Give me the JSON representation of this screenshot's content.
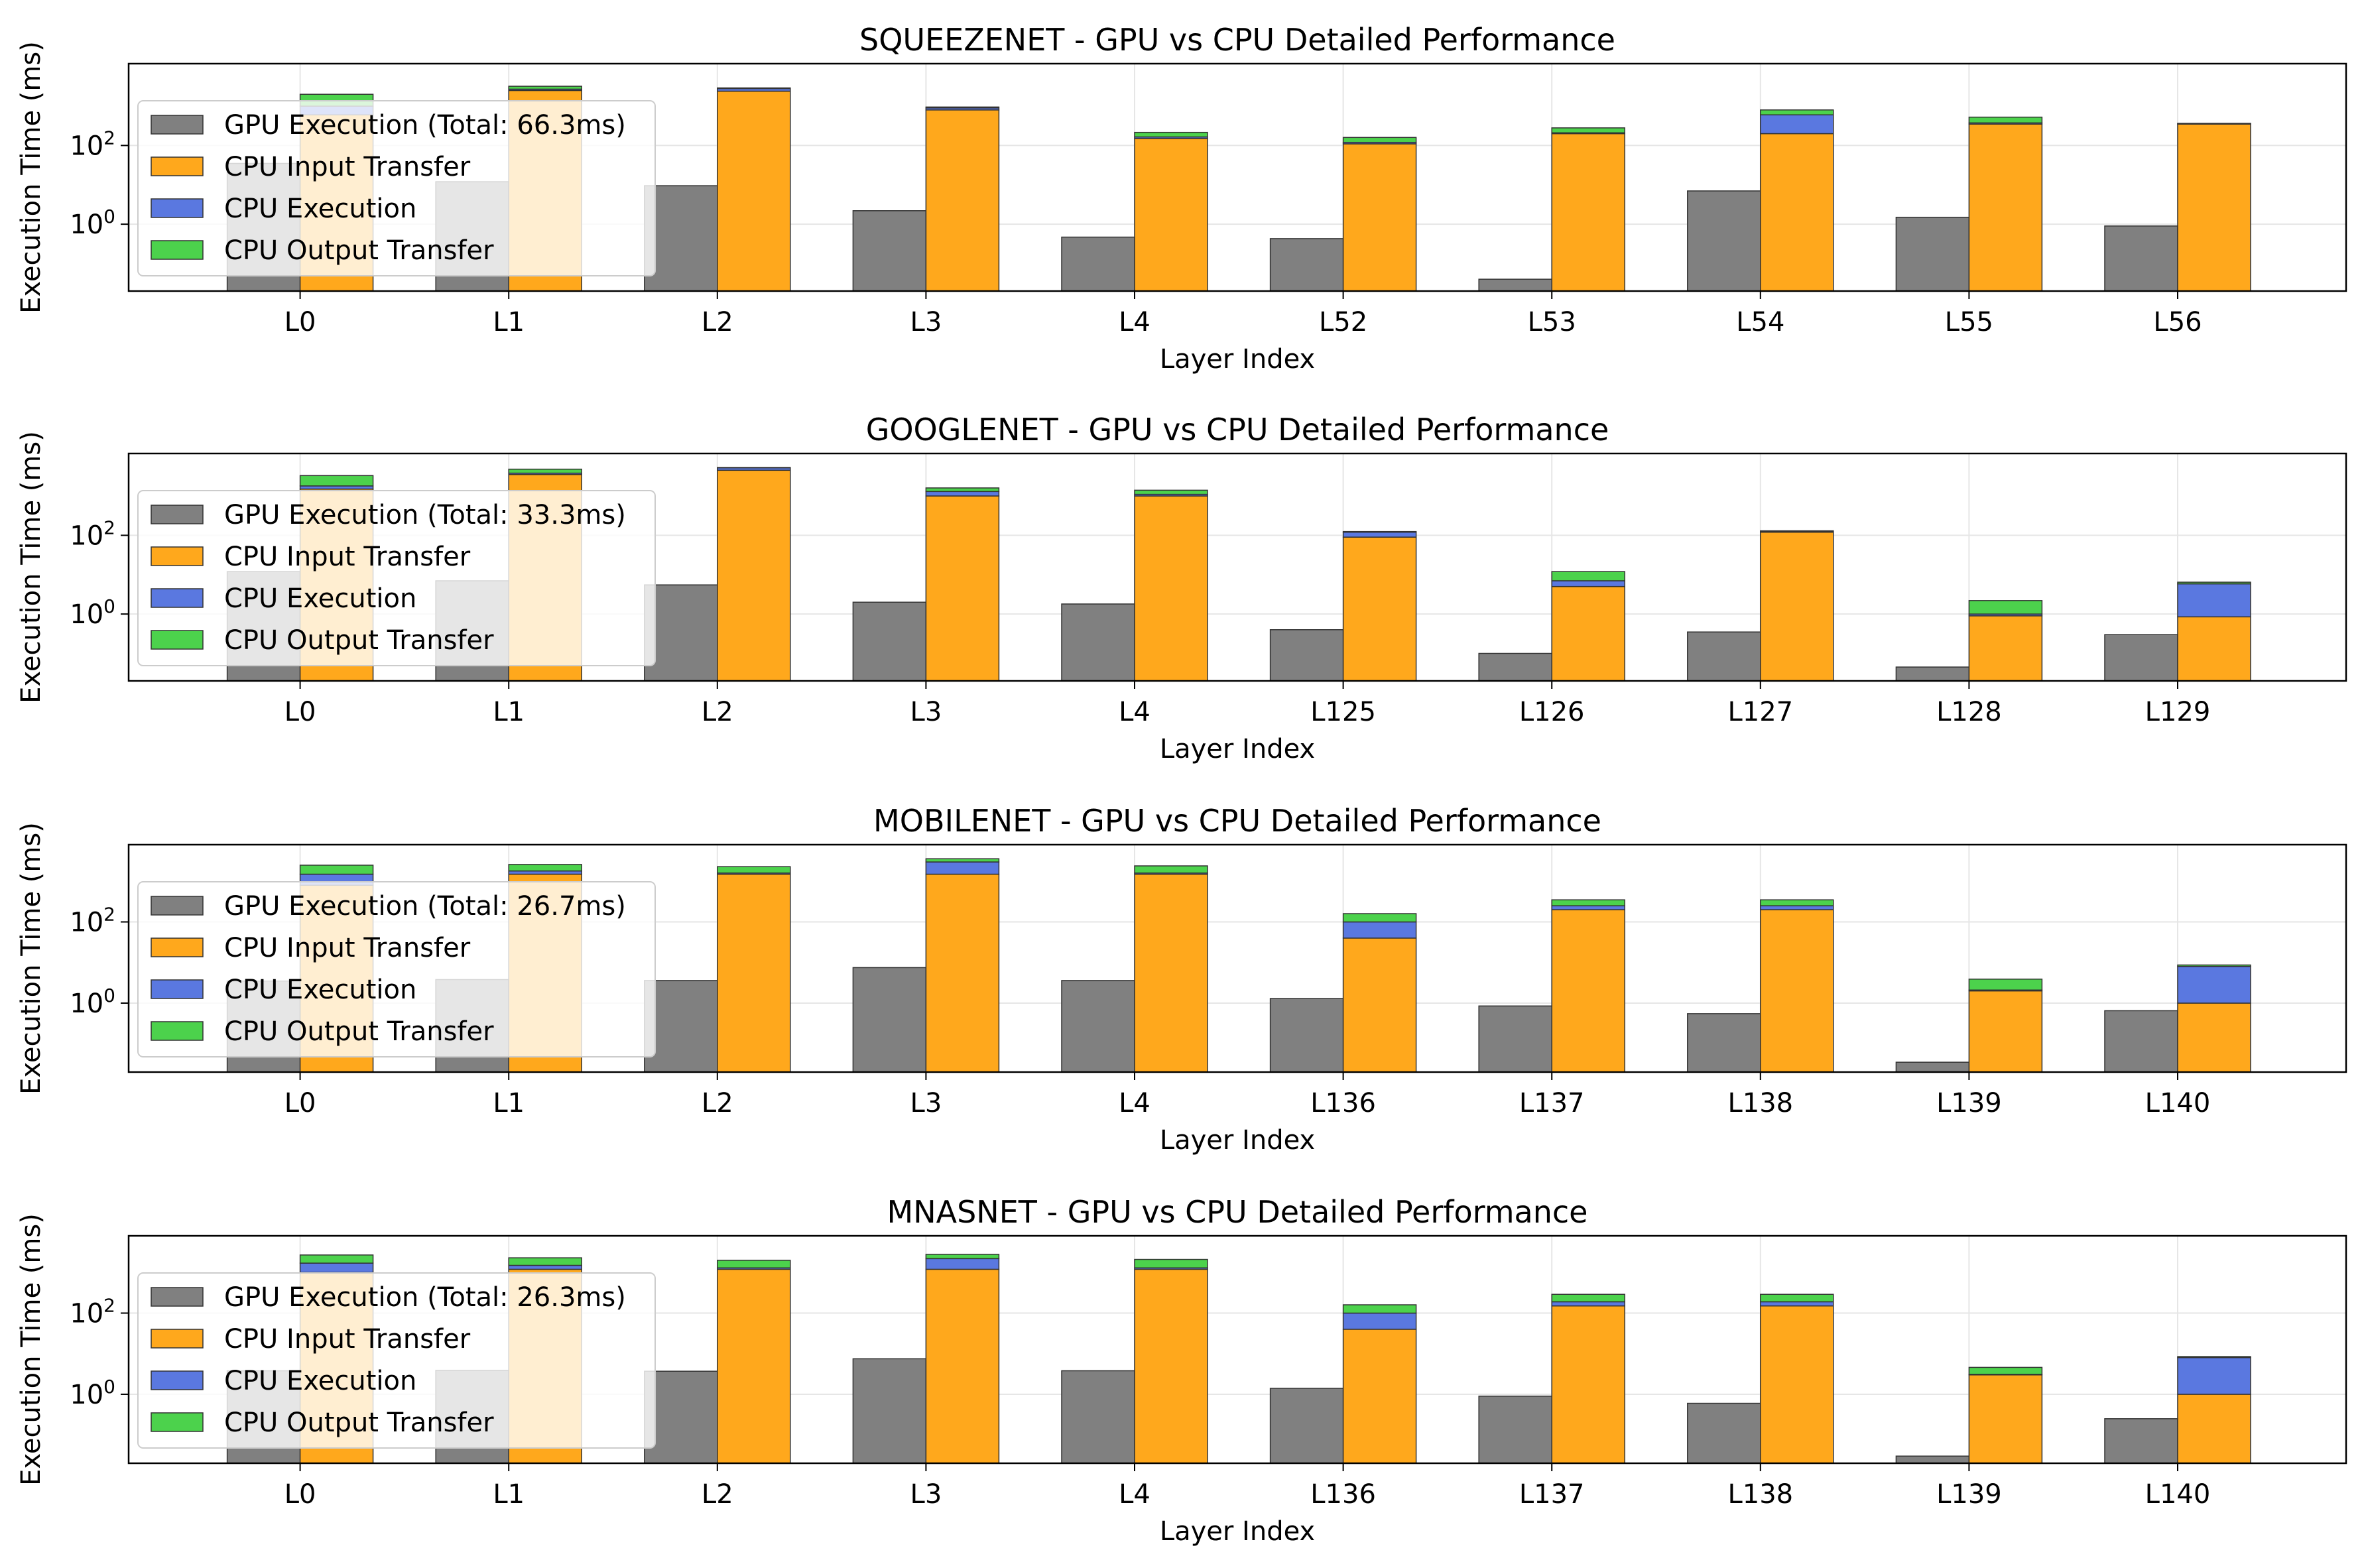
{
  "figure": {
    "background": "#ffffff"
  },
  "legend_labels": {
    "cpu_input": "CPU Input Transfer",
    "cpu_exec": "CPU Execution",
    "cpu_output": "CPU Output Transfer"
  },
  "colors": {
    "gpu": "#808080",
    "cpu_input": "#ffa81c",
    "cpu_exec": "#5a78e0",
    "cpu_output": "#4cd24c",
    "grid": "#e6e6e6"
  },
  "chart_data": [
    {
      "type": "bar",
      "stacked_cpu": true,
      "scale": "log",
      "title": "SQUEEZENET - GPU vs CPU Detailed Performance",
      "xlabel": "Layer Index",
      "ylabel": "Execution Time (ms)",
      "ylim": [
        0.02,
        12000
      ],
      "yticks": [
        {
          "v": 1,
          "label": "10^0"
        },
        {
          "v": 100,
          "label": "10^2"
        }
      ],
      "legend_loc": "upper-left",
      "gpu_legend": "GPU Execution (Total: 66.3ms)",
      "categories": [
        "L0",
        "L1",
        "L2",
        "L3",
        "L4",
        "L52",
        "L53",
        "L54",
        "L55",
        "L56"
      ],
      "series": [
        {
          "name": "GPU Execution (Total: 66.3ms)",
          "values": [
            35,
            12,
            9.5,
            2.2,
            0.47,
            0.43,
            0.04,
            7,
            1.5,
            0.9
          ]
        },
        {
          "name": "CPU Input Transfer",
          "values": [
            600,
            2500,
            2400,
            800,
            150,
            110,
            200,
            200,
            350,
            350
          ]
        },
        {
          "name": "CPU Execution",
          "values": [
            400,
            200,
            400,
            100,
            15,
            10,
            10,
            400,
            25,
            10
          ]
        },
        {
          "name": "CPU Output Transfer",
          "values": [
            1000,
            500,
            100,
            50,
            50,
            40,
            70,
            200,
            150,
            5
          ]
        }
      ]
    },
    {
      "type": "bar",
      "stacked_cpu": true,
      "scale": "log",
      "title": "GOOGLENET - GPU vs CPU Detailed Performance",
      "xlabel": "Layer Index",
      "ylabel": "Execution Time (ms)",
      "ylim": [
        0.02,
        12000
      ],
      "yticks": [
        {
          "v": 1,
          "label": "10^0"
        },
        {
          "v": 100,
          "label": "10^2"
        }
      ],
      "legend_loc": "upper-left",
      "gpu_legend": "GPU Execution (Total: 33.3ms)",
      "categories": [
        "L0",
        "L1",
        "L2",
        "L3",
        "L4",
        "L125",
        "L126",
        "L127",
        "L128",
        "L129"
      ],
      "series": [
        {
          "name": "GPU Execution (Total: 33.3ms)",
          "values": [
            12,
            7,
            5.5,
            2,
            1.8,
            0.4,
            0.1,
            0.35,
            0.045,
            0.3
          ]
        },
        {
          "name": "CPU Input Transfer",
          "values": [
            1500,
            3500,
            4500,
            1000,
            1000,
            90,
            5,
            120,
            0.9,
            0.85
          ]
        },
        {
          "name": "CPU Execution",
          "values": [
            300,
            300,
            700,
            300,
            100,
            30,
            2,
            5,
            0.1,
            5
          ]
        },
        {
          "name": "CPU Output Transfer",
          "values": [
            1500,
            1000,
            100,
            300,
            300,
            5,
            5,
            5,
            1.2,
            0.6
          ]
        }
      ]
    },
    {
      "type": "bar",
      "stacked_cpu": true,
      "scale": "log",
      "title": "MOBILENET - GPU vs CPU Detailed Performance",
      "xlabel": "Layer Index",
      "ylabel": "Execution Time (ms)",
      "ylim": [
        0.02,
        8000
      ],
      "yticks": [
        {
          "v": 1,
          "label": "10^0"
        },
        {
          "v": 100,
          "label": "10^2"
        }
      ],
      "legend_loc": "upper-left",
      "gpu_legend": "GPU Execution (Total: 26.7ms)",
      "categories": [
        "L0",
        "L1",
        "L2",
        "L3",
        "L4",
        "L136",
        "L137",
        "L138",
        "L139",
        "L140"
      ],
      "series": [
        {
          "name": "GPU Execution (Total: 26.7ms)",
          "values": [
            3.5,
            3.8,
            3.6,
            7.5,
            3.6,
            1.3,
            0.85,
            0.55,
            0.035,
            0.65
          ]
        },
        {
          "name": "CPU Input Transfer",
          "values": [
            800,
            1500,
            1500,
            1500,
            1500,
            40,
            200,
            200,
            2,
            1
          ]
        },
        {
          "name": "CPU Execution",
          "values": [
            700,
            300,
            100,
            1500,
            100,
            60,
            50,
            50,
            0.1,
            7
          ]
        },
        {
          "name": "CPU Output Transfer",
          "values": [
            1000,
            800,
            700,
            600,
            800,
            60,
            100,
            100,
            1.8,
            0.7
          ]
        }
      ]
    },
    {
      "type": "bar",
      "stacked_cpu": true,
      "scale": "log",
      "title": "MNASNET - GPU vs CPU Detailed Performance",
      "xlabel": "Layer Index",
      "ylabel": "Execution Time (ms)",
      "ylim": [
        0.02,
        8000
      ],
      "yticks": [
        {
          "v": 1,
          "label": "10^0"
        },
        {
          "v": 100,
          "label": "10^2"
        }
      ],
      "legend_loc": "upper-left",
      "gpu_legend": "GPU Execution (Total: 26.3ms)",
      "categories": [
        "L0",
        "L1",
        "L2",
        "L3",
        "L4",
        "L136",
        "L137",
        "L138",
        "L139",
        "L140"
      ],
      "series": [
        {
          "name": "GPU Execution (Total: 26.3ms)",
          "values": [
            3.8,
            3.9,
            3.7,
            7.5,
            3.8,
            1.4,
            0.9,
            0.6,
            0.03,
            0.25
          ]
        },
        {
          "name": "CPU Input Transfer",
          "values": [
            1000,
            1200,
            1200,
            1200,
            1200,
            40,
            150,
            150,
            3,
            1
          ]
        },
        {
          "name": "CPU Execution",
          "values": [
            700,
            300,
            100,
            1000,
            100,
            60,
            40,
            40,
            0.1,
            7
          ]
        },
        {
          "name": "CPU Output Transfer",
          "values": [
            1000,
            800,
            700,
            600,
            800,
            60,
            100,
            100,
            1.5,
            0.5
          ]
        }
      ]
    }
  ]
}
